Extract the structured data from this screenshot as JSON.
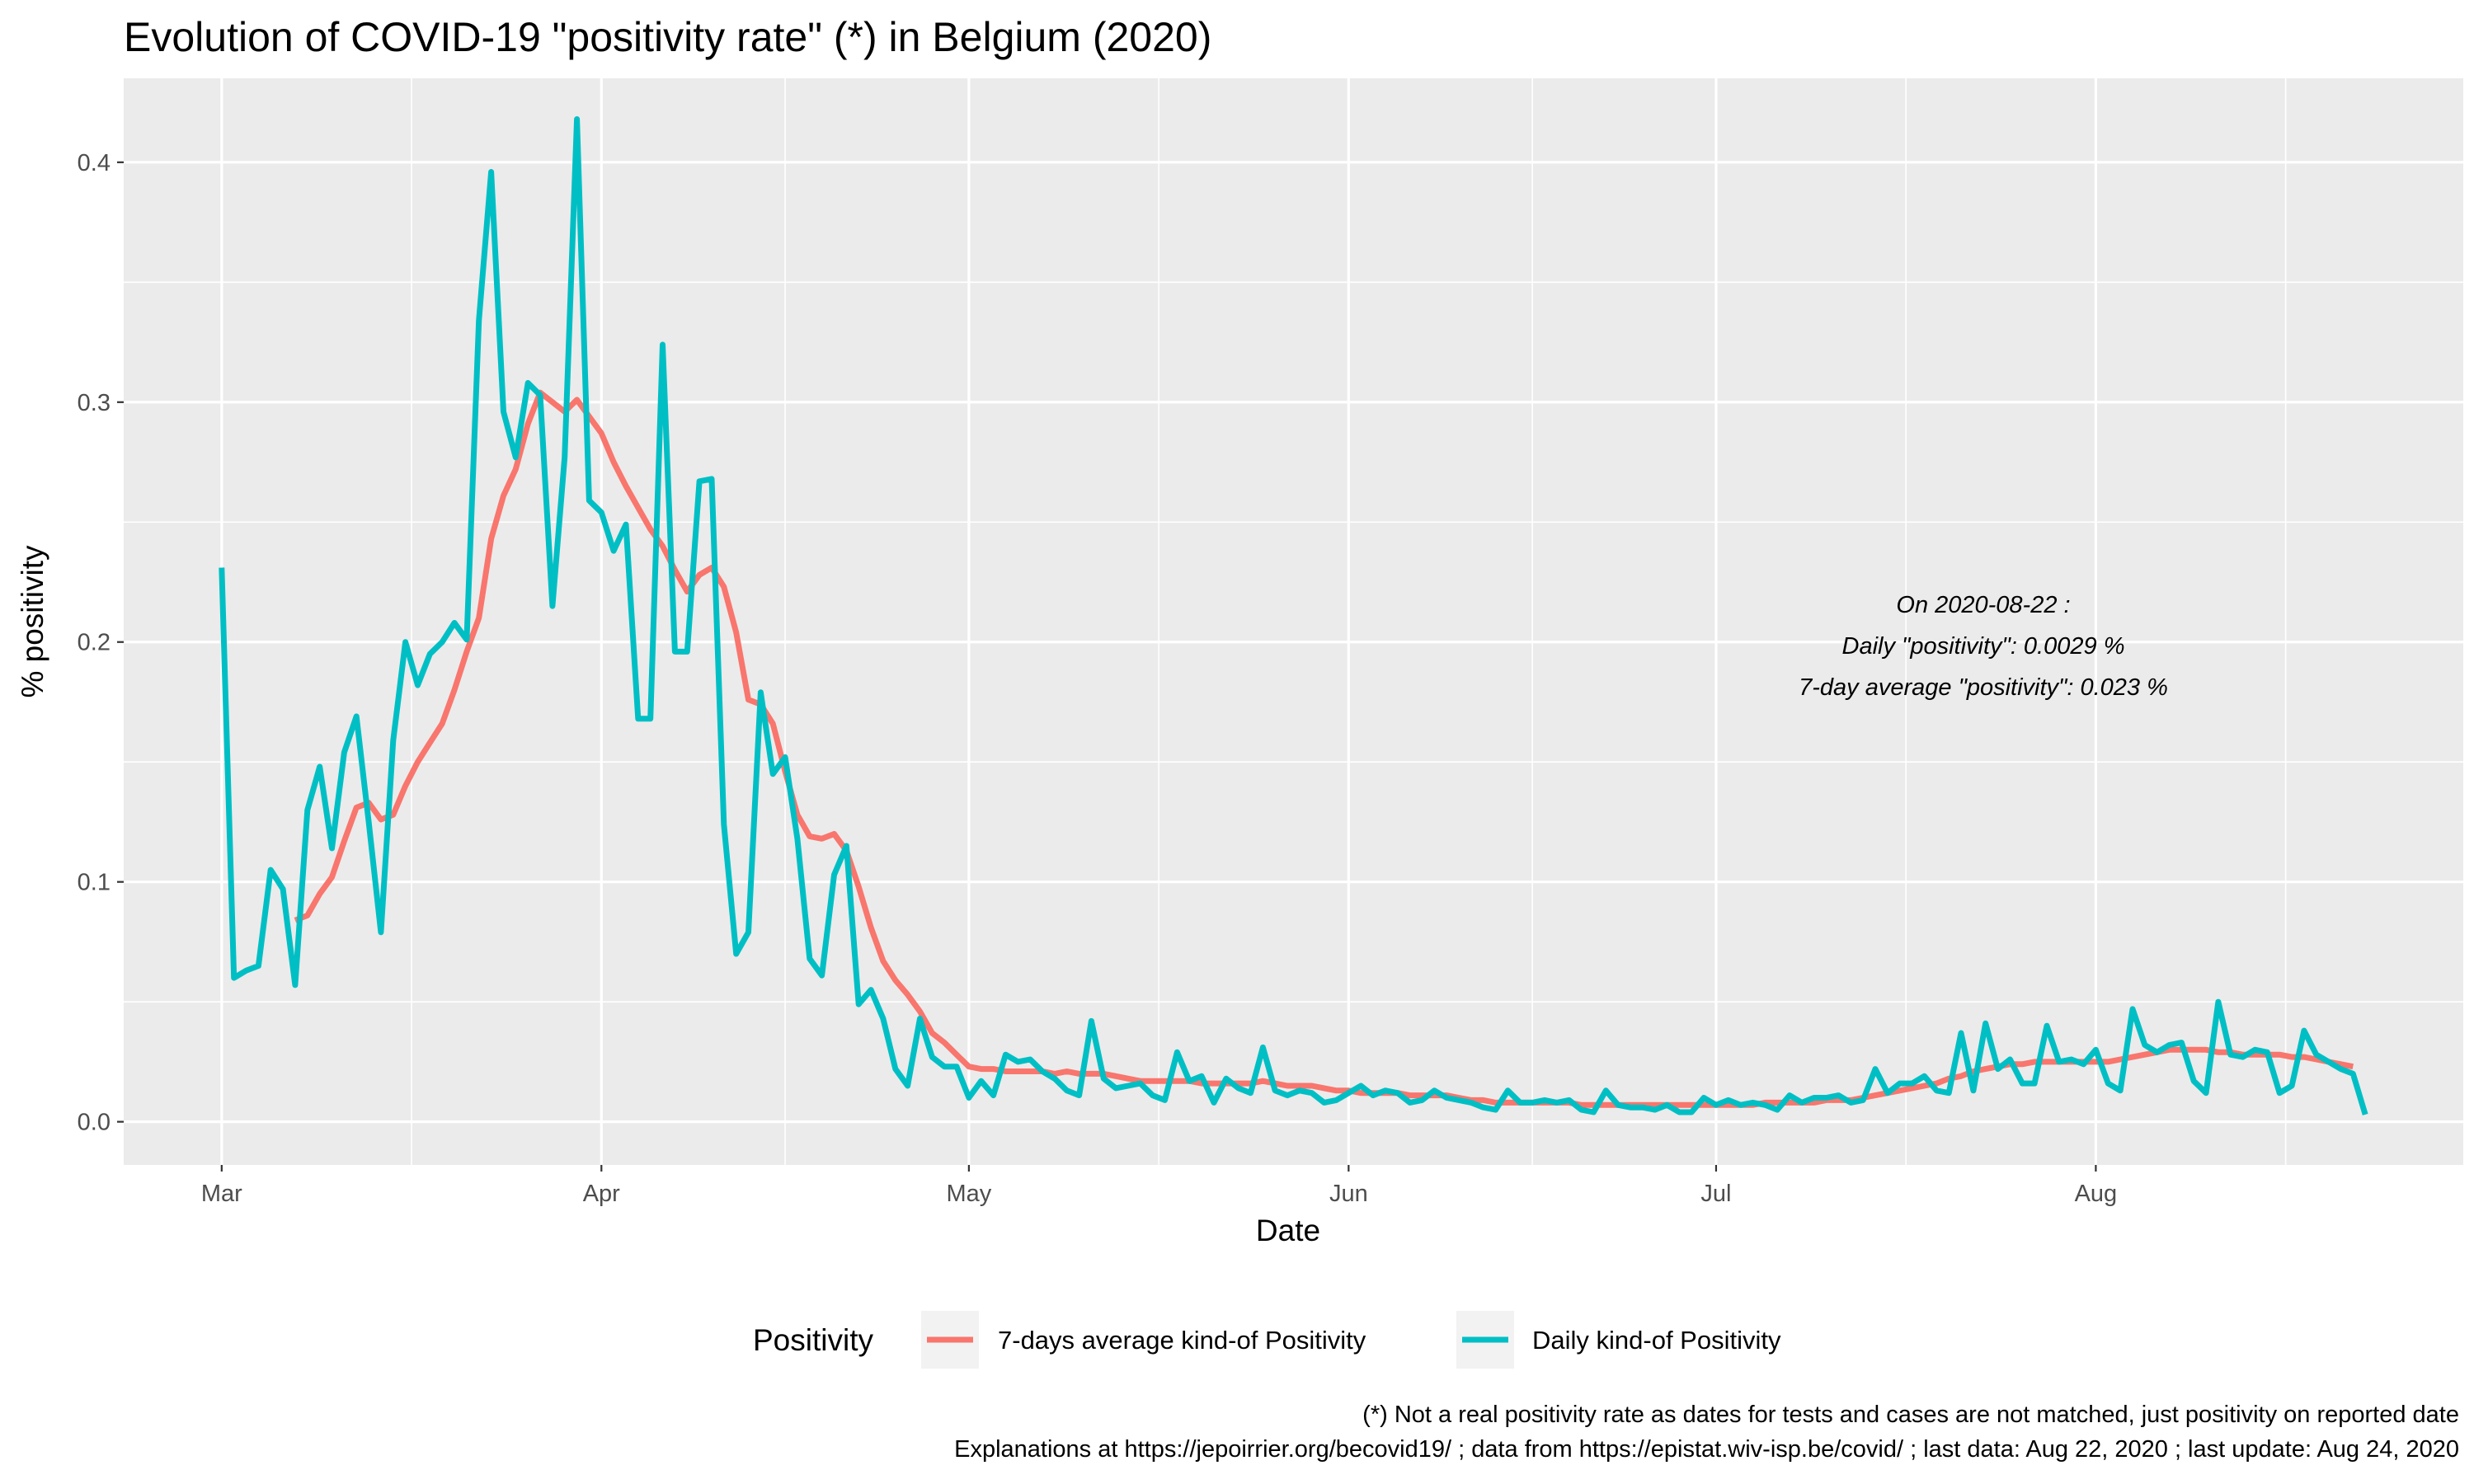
{
  "chart_data": {
    "type": "line",
    "title": "Evolution of COVID-19 \"positivity rate\" (*) in Belgium (2020)",
    "xlabel": "Date",
    "ylabel": "% positivity",
    "x_ticks": [
      "Mar",
      "Apr",
      "May",
      "Jun",
      "Jul",
      "Aug"
    ],
    "x_tick_dates": [
      "2020-03-01",
      "2020-04-01",
      "2020-05-01",
      "2020-06-01",
      "2020-07-01",
      "2020-08-01"
    ],
    "x_range": [
      "2020-02-22",
      "2020-08-31"
    ],
    "y_ticks": [
      "0.0",
      "0.1",
      "0.2",
      "0.3",
      "0.4"
    ],
    "ylim": [
      -0.018,
      0.435
    ],
    "grid": true,
    "legend_position": "bottom",
    "legend_title": "Positivity",
    "colors": {
      "avg": "#F8766D",
      "daily": "#00BFC4",
      "panel": "#EBEBEB",
      "grid": "#FFFFFF"
    },
    "series": [
      {
        "name": "7-days average kind-of Positivity",
        "key": "avg",
        "start_date": "2020-03-07",
        "values": [
          0.084,
          0.086,
          0.095,
          0.102,
          0.117,
          0.131,
          0.133,
          0.126,
          0.128,
          0.14,
          0.15,
          0.158,
          0.166,
          0.18,
          0.196,
          0.21,
          0.243,
          0.261,
          0.272,
          0.291,
          0.304,
          0.3,
          0.296,
          0.301,
          0.294,
          0.287,
          0.275,
          0.265,
          0.256,
          0.247,
          0.24,
          0.23,
          0.221,
          0.228,
          0.231,
          0.223,
          0.204,
          0.176,
          0.174,
          0.166,
          0.146,
          0.128,
          0.119,
          0.118,
          0.12,
          0.113,
          0.098,
          0.081,
          0.067,
          0.059,
          0.053,
          0.046,
          0.037,
          0.033,
          0.028,
          0.023,
          0.022,
          0.022,
          0.021,
          0.021,
          0.021,
          0.021,
          0.02,
          0.021,
          0.02,
          0.02,
          0.02,
          0.019,
          0.018,
          0.017,
          0.017,
          0.017,
          0.017,
          0.017,
          0.016,
          0.016,
          0.016,
          0.016,
          0.016,
          0.017,
          0.016,
          0.015,
          0.015,
          0.015,
          0.014,
          0.013,
          0.013,
          0.012,
          0.012,
          0.012,
          0.012,
          0.011,
          0.011,
          0.011,
          0.011,
          0.01,
          0.009,
          0.009,
          0.008,
          0.008,
          0.008,
          0.008,
          0.008,
          0.008,
          0.008,
          0.007,
          0.007,
          0.007,
          0.007,
          0.007,
          0.007,
          0.007,
          0.007,
          0.007,
          0.007,
          0.007,
          0.007,
          0.007,
          0.007,
          0.007,
          0.008,
          0.008,
          0.008,
          0.008,
          0.008,
          0.009,
          0.009,
          0.009,
          0.01,
          0.011,
          0.012,
          0.013,
          0.014,
          0.015,
          0.016,
          0.018,
          0.019,
          0.021,
          0.022,
          0.023,
          0.024,
          0.024,
          0.025,
          0.025,
          0.025,
          0.025,
          0.025,
          0.025,
          0.025,
          0.026,
          0.027,
          0.028,
          0.029,
          0.03,
          0.03,
          0.03,
          0.03,
          0.029,
          0.029,
          0.028,
          0.028,
          0.028,
          0.028,
          0.027,
          0.027,
          0.026,
          0.025,
          0.024,
          0.023
        ]
      },
      {
        "name": "Daily kind-of Positivity",
        "key": "daily",
        "start_date": "2020-03-01",
        "values": [
          0.231,
          0.06,
          0.063,
          0.065,
          0.105,
          0.097,
          0.057,
          0.13,
          0.148,
          0.114,
          0.154,
          0.169,
          0.125,
          0.079,
          0.159,
          0.2,
          0.182,
          0.195,
          0.2,
          0.208,
          0.201,
          0.334,
          0.396,
          0.296,
          0.277,
          0.308,
          0.303,
          0.215,
          0.277,
          0.418,
          0.259,
          0.254,
          0.238,
          0.249,
          0.168,
          0.168,
          0.324,
          0.196,
          0.196,
          0.267,
          0.268,
          0.124,
          0.07,
          0.079,
          0.179,
          0.145,
          0.152,
          0.118,
          0.068,
          0.061,
          0.103,
          0.115,
          0.049,
          0.055,
          0.043,
          0.022,
          0.015,
          0.043,
          0.027,
          0.023,
          0.023,
          0.01,
          0.017,
          0.011,
          0.028,
          0.025,
          0.026,
          0.021,
          0.018,
          0.013,
          0.011,
          0.042,
          0.018,
          0.014,
          0.015,
          0.016,
          0.011,
          0.009,
          0.029,
          0.017,
          0.019,
          0.008,
          0.018,
          0.014,
          0.012,
          0.031,
          0.013,
          0.011,
          0.013,
          0.012,
          0.008,
          0.009,
          0.012,
          0.015,
          0.011,
          0.013,
          0.012,
          0.008,
          0.009,
          0.013,
          0.01,
          0.009,
          0.008,
          0.006,
          0.005,
          0.013,
          0.008,
          0.008,
          0.009,
          0.008,
          0.009,
          0.005,
          0.004,
          0.013,
          0.007,
          0.006,
          0.006,
          0.005,
          0.007,
          0.004,
          0.004,
          0.01,
          0.007,
          0.009,
          0.007,
          0.008,
          0.007,
          0.005,
          0.011,
          0.008,
          0.01,
          0.01,
          0.011,
          0.008,
          0.009,
          0.022,
          0.012,
          0.016,
          0.016,
          0.019,
          0.013,
          0.012,
          0.037,
          0.013,
          0.041,
          0.022,
          0.026,
          0.016,
          0.016,
          0.04,
          0.025,
          0.026,
          0.024,
          0.03,
          0.016,
          0.013,
          0.047,
          0.032,
          0.029,
          0.032,
          0.033,
          0.017,
          0.012,
          0.05,
          0.028,
          0.027,
          0.03,
          0.029,
          0.012,
          0.015,
          0.038,
          0.028,
          0.025,
          0.022,
          0.02,
          0.003
        ]
      }
    ]
  },
  "annotation": {
    "line1": "On 2020-08-22 :",
    "line2": "Daily \"positivity\": 0.0029 %",
    "line3": "7-day average \"positivity\": 0.023 %"
  },
  "caption": {
    "line1": "(*) Not a real positivity rate as dates for tests and cases are not matched, just positivity on reported date",
    "line2": "Explanations at https://jepoirrier.org/becovid19/ ; data from https://epistat.wiv-isp.be/covid/ ; last data: Aug 22, 2020  ; last update: Aug 24, 2020"
  }
}
